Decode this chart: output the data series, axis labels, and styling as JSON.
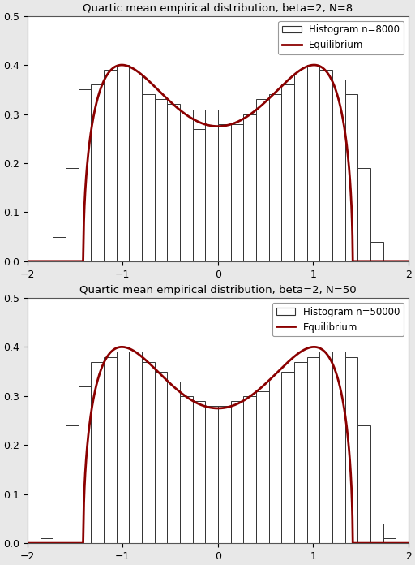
{
  "title1": "Quartic mean empirical distribution, beta=2, N=8",
  "title2": "Quartic mean empirical distribution, beta=2, N=50",
  "legend1_hist": "Histogram n=8000",
  "legend2_hist": "Histogram n=50000",
  "legend_eq": "Equilibrium",
  "xlim": [
    -2,
    2
  ],
  "ylim": [
    0,
    0.5
  ],
  "xticks": [
    -2,
    -1,
    0,
    1,
    2
  ],
  "yticks": [
    0.0,
    0.1,
    0.2,
    0.3,
    0.4,
    0.5
  ],
  "bar_color": "white",
  "bar_edge_color": "#333333",
  "curve_color": "#8B0000",
  "curve_linewidth": 2.0,
  "n_bins": 30,
  "hist1_heights": [
    0.0,
    0.01,
    0.05,
    0.19,
    0.35,
    0.36,
    0.39,
    0.4,
    0.38,
    0.34,
    0.33,
    0.32,
    0.31,
    0.27,
    0.31,
    0.28,
    0.28,
    0.3,
    0.33,
    0.34,
    0.36,
    0.38,
    0.4,
    0.39,
    0.37,
    0.34,
    0.19,
    0.04,
    0.01,
    0.0
  ],
  "hist2_heights": [
    0.0,
    0.01,
    0.04,
    0.24,
    0.32,
    0.37,
    0.38,
    0.39,
    0.39,
    0.37,
    0.35,
    0.33,
    0.3,
    0.29,
    0.28,
    0.28,
    0.29,
    0.3,
    0.31,
    0.33,
    0.35,
    0.37,
    0.38,
    0.39,
    0.39,
    0.38,
    0.24,
    0.04,
    0.01,
    0.0
  ],
  "bg_color": "#ffffff",
  "fig_bg_color": "#e8e8e8"
}
